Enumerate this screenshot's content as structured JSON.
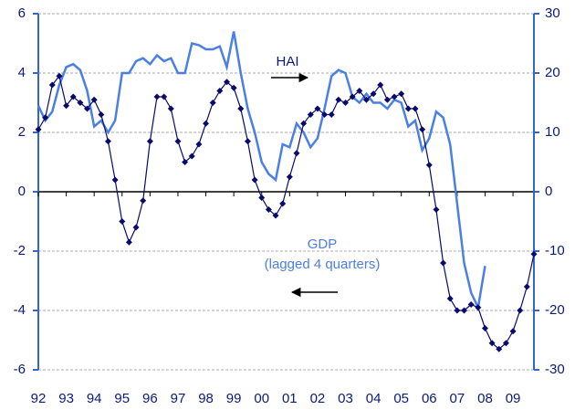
{
  "chart_data": {
    "type": "line",
    "xlim": [
      1992,
      2009.75
    ],
    "xticks": [
      {
        "value": 1992,
        "label": "92"
      },
      {
        "value": 1993,
        "label": "93"
      },
      {
        "value": 1994,
        "label": "94"
      },
      {
        "value": 1995,
        "label": "95"
      },
      {
        "value": 1996,
        "label": "96"
      },
      {
        "value": 1997,
        "label": "97"
      },
      {
        "value": 1998,
        "label": "98"
      },
      {
        "value": 1999,
        "label": "99"
      },
      {
        "value": 2000,
        "label": "00"
      },
      {
        "value": 2001,
        "label": "01"
      },
      {
        "value": 2002,
        "label": "02"
      },
      {
        "value": 2003,
        "label": "03"
      },
      {
        "value": 2004,
        "label": "04"
      },
      {
        "value": 2005,
        "label": "05"
      },
      {
        "value": 2006,
        "label": "06"
      },
      {
        "value": 2007,
        "label": "07"
      },
      {
        "value": 2008,
        "label": "08"
      },
      {
        "value": 2009,
        "label": "09"
      }
    ],
    "ylim": [
      -6,
      6
    ],
    "yticks": [
      -6,
      -4,
      -2,
      0,
      2,
      4,
      6
    ],
    "y2lim": [
      -30,
      30
    ],
    "y2ticks": [
      -30,
      -20,
      -10,
      0,
      10,
      20,
      30
    ],
    "grid": true,
    "annotations": [
      "HAI",
      "GDP",
      "(lagged 4 quarters)"
    ],
    "series": [
      {
        "name": "HAI",
        "color": "#4a7fe6",
        "axis": "y2",
        "x": [
          1992,
          1992.25,
          1992.5,
          1992.75,
          1993,
          1993.25,
          1993.5,
          1993.75,
          1994,
          1994.25,
          1994.5,
          1994.75,
          1995,
          1995.25,
          1995.5,
          1995.75,
          1996,
          1996.25,
          1996.5,
          1996.75,
          1997,
          1997.25,
          1997.5,
          1997.75,
          1998,
          1998.25,
          1998.5,
          1998.75,
          1999,
          1999.25,
          1999.5,
          1999.75,
          2000,
          2000.25,
          2000.5,
          2000.75,
          2001,
          2001.25,
          2001.5,
          2001.75,
          2002,
          2002.25,
          2002.5,
          2002.75,
          2003,
          2003.25,
          2003.5,
          2003.75,
          2004,
          2004.25,
          2004.5,
          2004.75,
          2005,
          2005.25,
          2005.5,
          2005.75,
          2006,
          2006.25,
          2006.5,
          2006.75,
          2007,
          2007.25,
          2007.5,
          2007.75,
          2008
        ],
        "values": [
          14.5,
          12,
          13.5,
          18,
          21,
          21.5,
          20.5,
          17,
          11,
          12,
          10,
          12,
          20,
          20,
          22,
          22.5,
          21.5,
          23,
          22,
          22.5,
          20,
          20,
          25,
          24.7,
          24,
          24,
          24.5,
          21,
          27,
          20,
          14,
          10,
          5,
          3,
          2,
          8,
          7.5,
          11.5,
          10,
          7.5,
          9,
          14,
          19.5,
          20.5,
          20,
          16,
          15,
          16.5,
          15,
          15,
          14,
          15.5,
          15,
          11,
          12,
          7,
          9,
          13.5,
          12.5,
          8,
          -2,
          -12,
          -17,
          -19.5,
          -12.5
        ]
      },
      {
        "name": "GDP",
        "color": "#0a0a6e",
        "axis": "y",
        "x": [
          1992,
          1992.25,
          1992.5,
          1992.75,
          1993,
          1993.25,
          1993.5,
          1993.75,
          1994,
          1994.25,
          1994.5,
          1994.75,
          1995,
          1995.25,
          1995.5,
          1995.75,
          1996,
          1996.25,
          1996.5,
          1996.75,
          1997,
          1997.25,
          1997.5,
          1997.75,
          1998,
          1998.25,
          1998.5,
          1998.75,
          1999,
          1999.25,
          1999.5,
          1999.75,
          2000,
          2000.25,
          2000.5,
          2000.75,
          2001,
          2001.25,
          2001.5,
          2001.75,
          2002,
          2002.25,
          2002.5,
          2002.75,
          2003,
          2003.25,
          2003.5,
          2003.75,
          2004,
          2004.25,
          2004.5,
          2004.75,
          2005,
          2005.25,
          2005.5,
          2005.75,
          2006,
          2006.25,
          2006.5,
          2006.75,
          2007,
          2007.25,
          2007.5,
          2007.75,
          2008,
          2008.25,
          2008.5,
          2008.75,
          2009,
          2009.25,
          2009.5,
          2009.75
        ],
        "values": [
          2.1,
          2.5,
          3.6,
          3.9,
          2.9,
          3.2,
          3.0,
          2.8,
          3.1,
          2.6,
          1.7,
          0.4,
          -1.0,
          -1.7,
          -1.2,
          -0.3,
          1.7,
          3.2,
          3.2,
          2.8,
          1.7,
          1.0,
          1.2,
          1.6,
          2.3,
          3.0,
          3.4,
          3.7,
          3.5,
          2.8,
          1.7,
          0.4,
          -0.2,
          -0.6,
          -0.8,
          -0.4,
          0.5,
          1.3,
          2.3,
          2.6,
          2.8,
          2.6,
          2.6,
          3.1,
          3.0,
          3.2,
          3.4,
          3.1,
          3.3,
          3.6,
          3.1,
          3.2,
          3.3,
          2.8,
          2.8,
          2.1,
          0.9,
          -0.6,
          -2.4,
          -3.6,
          -4.0,
          -4.0,
          -3.8,
          -3.9,
          -4.6,
          -5.1,
          -5.3,
          -5.1,
          -4.7,
          -4.0,
          -3.2,
          -2.1
        ]
      }
    ]
  }
}
